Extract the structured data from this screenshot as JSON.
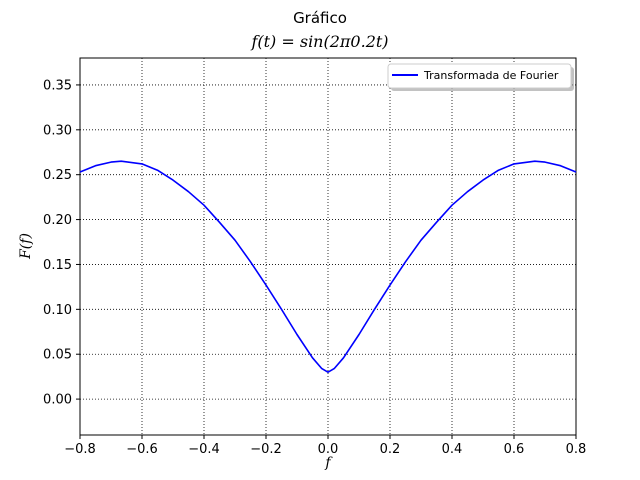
{
  "chart_data": {
    "type": "line",
    "title": "Gráfico",
    "subtitle": "f(t) = sin(2π0.2t)",
    "xlabel": "f",
    "ylabel": "F(f)",
    "xlim": [
      -0.8,
      0.8
    ],
    "ylim": [
      -0.04,
      0.38
    ],
    "xticks": [
      -0.8,
      -0.6,
      -0.4,
      -0.2,
      0.0,
      0.2,
      0.4,
      0.6,
      0.8
    ],
    "xtick_labels": [
      "−0.8",
      "−0.6",
      "−0.4",
      "−0.2",
      "0.0",
      "0.2",
      "0.4",
      "0.6",
      "0.8"
    ],
    "yticks": [
      0.0,
      0.05,
      0.1,
      0.15,
      0.2,
      0.25,
      0.3,
      0.35
    ],
    "ytick_labels": [
      "0.00",
      "0.05",
      "0.10",
      "0.15",
      "0.20",
      "0.25",
      "0.30",
      "0.35"
    ],
    "grid": true,
    "legend_position": "top-right",
    "series": [
      {
        "name": "Transformada de Fourier",
        "color": "#0000ff",
        "x": [
          -0.8,
          -0.75,
          -0.7,
          -0.667,
          -0.6,
          -0.55,
          -0.5,
          -0.45,
          -0.4,
          -0.35,
          -0.3,
          -0.25,
          -0.2,
          -0.15,
          -0.1,
          -0.05,
          -0.02,
          0.0,
          0.02,
          0.05,
          0.1,
          0.15,
          0.2,
          0.25,
          0.3,
          0.35,
          0.4,
          0.45,
          0.5,
          0.55,
          0.6,
          0.667,
          0.7,
          0.75,
          0.8
        ],
        "y": [
          0.253,
          0.26,
          0.264,
          0.265,
          0.262,
          0.255,
          0.244,
          0.231,
          0.216,
          0.197,
          0.177,
          0.153,
          0.127,
          0.1,
          0.072,
          0.046,
          0.034,
          0.03,
          0.034,
          0.046,
          0.072,
          0.1,
          0.127,
          0.153,
          0.177,
          0.197,
          0.216,
          0.231,
          0.244,
          0.255,
          0.262,
          0.265,
          0.264,
          0.26,
          0.253
        ]
      }
    ]
  }
}
